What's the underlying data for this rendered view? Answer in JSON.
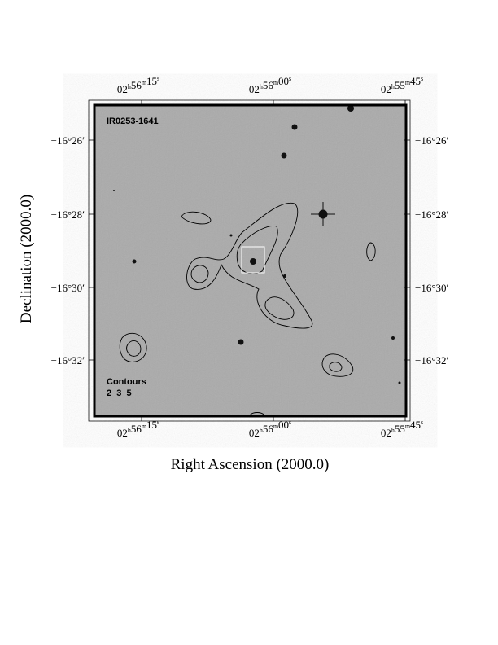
{
  "chart_data": {
    "type": "image-contour",
    "title": "",
    "object_label": "IR0253-1641",
    "xlabel": "Right Ascension (2000.0)",
    "ylabel": "Declination (2000.0)",
    "x_ticks": [
      {
        "h": "02",
        "m": "56",
        "s": "15"
      },
      {
        "h": "02",
        "m": "56",
        "s": "00"
      },
      {
        "h": "02",
        "m": "55",
        "s": "45"
      }
    ],
    "y_ticks": [
      {
        "deg": "−16",
        "min": "26"
      },
      {
        "deg": "−16",
        "min": "28"
      },
      {
        "deg": "−16",
        "min": "30"
      },
      {
        "deg": "−16",
        "min": "32"
      }
    ],
    "legend": {
      "title": "Contours",
      "levels": "2  3  5"
    },
    "background": "grayscale optical image",
    "colors": {
      "background": "#a9a9a9",
      "contour": "#000000",
      "marker_box": "#ffffff"
    }
  }
}
